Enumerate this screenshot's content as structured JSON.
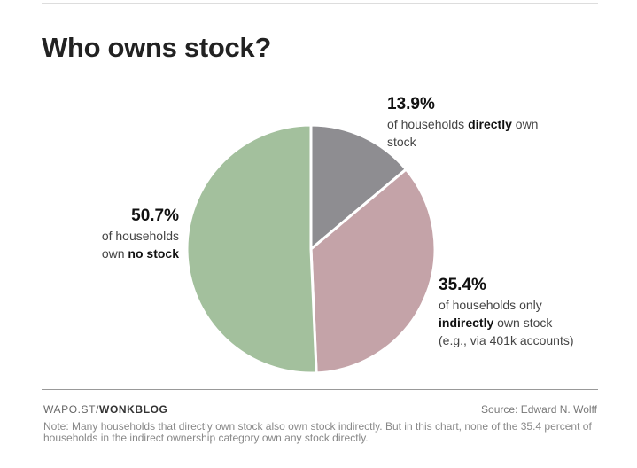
{
  "title": "Who owns stock?",
  "callouts": {
    "no_stock": {
      "pct": "50.7%",
      "line1": "of households",
      "line2_pre": "own ",
      "line2_bold": "no stock"
    },
    "direct": {
      "pct": "13.9%",
      "pre": "of households ",
      "bold": "directly",
      "post": " own stock"
    },
    "indirect": {
      "pct": "35.4%",
      "line1": "of households only",
      "bold": "indirectly",
      "post": " own stock",
      "line3": "(e.g., via 401k accounts)"
    }
  },
  "footer": {
    "brand_prefix": "WAPO.ST/",
    "brand_bold": "WONKBLOG",
    "source": "Source: Edward N. Wolff",
    "note": "Note: Many households that directly own stock also own stock indirectly. But in this chart, none of the 35.4 percent of households in the indirect ownership category own any stock directly."
  },
  "chart_data": {
    "type": "pie",
    "title": "Who owns stock?",
    "slices": [
      {
        "label": "of households directly own stock",
        "value": 13.9,
        "color": "#8e8d91"
      },
      {
        "label": "of households only indirectly own stock",
        "value": 35.4,
        "color": "#c4a3a8"
      },
      {
        "label": "of households own no stock",
        "value": 50.7,
        "color": "#a3c09d"
      }
    ],
    "start": "12 o'clock",
    "direction": "clockwise"
  }
}
